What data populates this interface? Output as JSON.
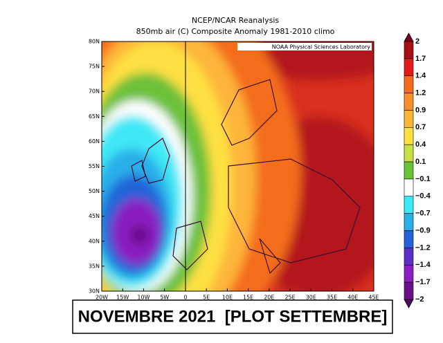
{
  "header": {
    "title": "NCEP/NCAR Reanalysis",
    "subtitle": "850mb air (C) Composite Anomaly 1981-2010 climo"
  },
  "map": {
    "credit": "NOAA Physical Sciences Laboratory",
    "lat_labels": [
      "80N",
      "75N",
      "70N",
      "65N",
      "60N",
      "55N",
      "50N",
      "45N",
      "40N",
      "35N",
      "30N"
    ],
    "lon_labels": [
      "20W",
      "15W",
      "10W",
      "5W",
      "0",
      "5E",
      "10E",
      "15E",
      "20E",
      "25E",
      "30E",
      "35E",
      "40E",
      "45E"
    ]
  },
  "colorbar": {
    "labels": [
      "2",
      "1.7",
      "1.4",
      "1.2",
      "0.9",
      "0.7",
      "0.4",
      "0.1",
      "−0.1",
      "−0.4",
      "−0.7",
      "−0.9",
      "−1.2",
      "−1.4",
      "−1.7",
      "−2"
    ]
  },
  "caption": "NOVEMBRE 2021  [PLOT SETTEMBRE]"
}
